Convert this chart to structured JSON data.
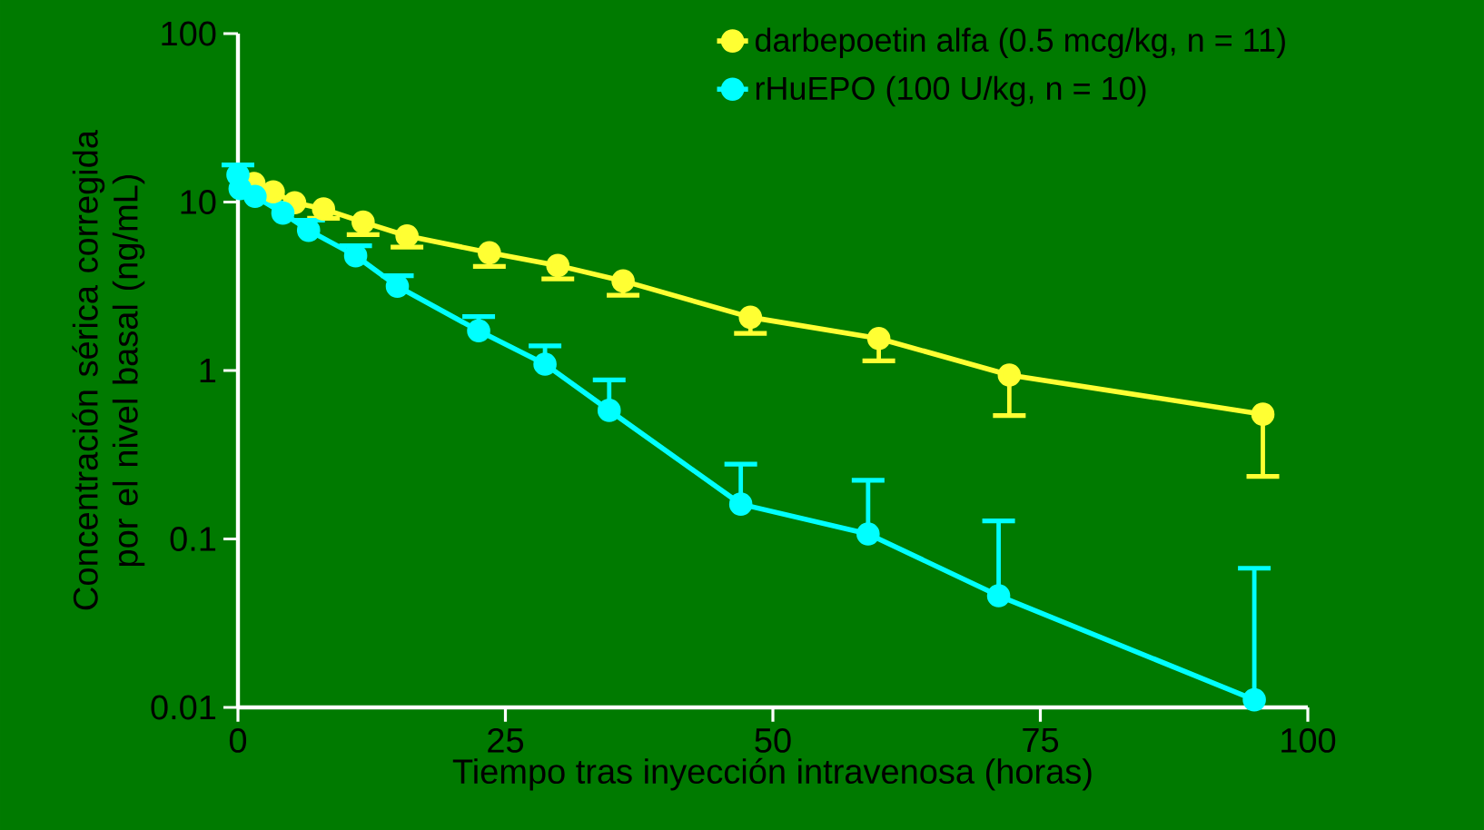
{
  "chart_data": {
    "type": "line",
    "xlabel": "Tiempo tras inyección intravenosa (horas)",
    "ylabel": "Concentración sérica corregida por el nivel basal (ng/mL)",
    "log": "y",
    "xlim": [
      0,
      100
    ],
    "xticks": [
      0,
      25,
      50,
      75,
      100
    ],
    "ylim": [
      0.01,
      100
    ],
    "yticks": [
      0.01,
      0.1,
      1,
      10,
      100
    ],
    "legend": "top right",
    "marker": "circle",
    "line_style": "solid",
    "grid": false,
    "series": [
      {
        "name": "darbepoetin alfa (0.5 mcg/kg, n = 11)",
        "color": "#ffff33",
        "x": [
          1.5,
          3.3,
          5.3,
          8,
          11.7,
          15.8,
          23.5,
          29.9,
          36,
          47.9,
          59.9,
          72.1,
          95.8
        ],
        "values": [
          12.9,
          11.5,
          9.9,
          9.1,
          7.6,
          6.3,
          5.0,
          4.2,
          3.4,
          2.07,
          1.55,
          0.94,
          0.55
        ],
        "errors": [
          null,
          null,
          null,
          [
            8.0,
            9.1
          ],
          [
            6.4,
            7.6
          ],
          [
            5.4,
            6.3
          ],
          [
            4.15,
            5.0
          ],
          [
            3.5,
            4.2
          ],
          [
            2.8,
            3.4
          ],
          [
            1.66,
            2.07
          ],
          [
            1.14,
            1.55
          ],
          [
            0.54,
            0.94
          ],
          [
            0.235,
            0.55
          ]
        ]
      },
      {
        "name": "rHuEPO (100 U/kg, n = 10)",
        "color": "#00ffff",
        "x": [
          0,
          0.2,
          1.6,
          4.2,
          6.6,
          11,
          14.9,
          22.5,
          28.7,
          34.7,
          47,
          58.9,
          71.1,
          95
        ],
        "values": [
          14.5,
          12.0,
          10.8,
          8.6,
          6.8,
          4.8,
          3.16,
          1.72,
          1.09,
          0.58,
          0.161,
          0.107,
          0.046,
          0.0111
        ],
        "errors": [
          [
            14.5,
            16.6
          ],
          null,
          null,
          [
            8.6,
            9.9
          ],
          [
            6.8,
            7.8
          ],
          [
            4.8,
            5.5
          ],
          [
            3.16,
            3.65
          ],
          [
            1.72,
            2.09
          ],
          [
            1.09,
            1.4
          ],
          [
            0.58,
            0.88
          ],
          [
            0.161,
            0.278
          ],
          [
            0.107,
            0.223
          ],
          [
            0.046,
            0.128
          ],
          [
            0.0111,
            0.067
          ]
        ]
      }
    ]
  }
}
